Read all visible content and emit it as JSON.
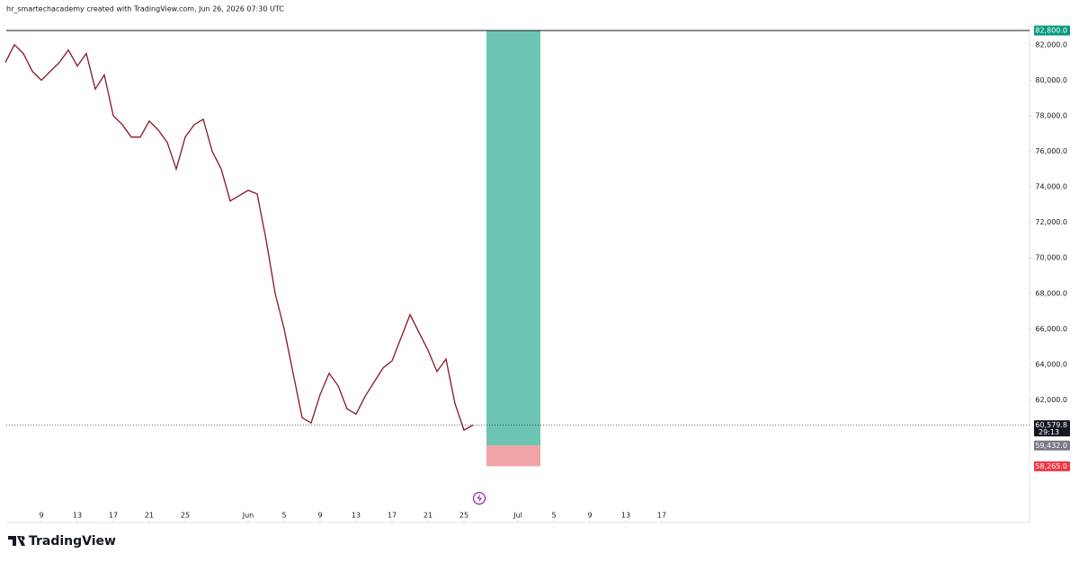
{
  "chart_data": {
    "type": "line",
    "header": "hr_smartechacademy created with TradingView.com, Jun 26, 2026 07:30 UTC",
    "brand": "TradingView",
    "color": "#8a1426",
    "x": [
      5,
      6,
      7,
      8,
      9,
      10,
      11,
      12,
      13,
      14,
      15,
      16,
      17,
      18,
      19,
      20,
      21,
      22,
      23,
      24,
      25,
      26,
      27,
      28,
      29,
      30,
      31,
      32,
      33,
      34,
      35,
      36,
      37,
      38,
      39,
      40,
      41,
      42,
      43,
      44,
      45,
      46,
      47,
      48,
      49,
      50,
      51,
      52,
      53,
      54,
      55,
      56,
      57
    ],
    "values": [
      81000,
      82000,
      81500,
      80500,
      80000,
      80500,
      81000,
      81700,
      80800,
      81500,
      79500,
      80300,
      78000,
      77500,
      76800,
      76800,
      77700,
      77200,
      76500,
      75000,
      76800,
      77500,
      77800,
      76000,
      75000,
      73200,
      73500,
      73800,
      73600,
      71000,
      68000,
      66000,
      63500,
      61000,
      60700,
      62300,
      63500,
      62800,
      61500,
      61200,
      62200,
      63000,
      63800,
      64200,
      65500,
      66800,
      65800,
      64800,
      63600,
      64300,
      61800,
      60300,
      60579.8
    ],
    "xlim": [
      5.1,
      118.9
    ],
    "ylim": [
      55100,
      83000
    ],
    "xticks": [
      {
        "value": 9,
        "label": "9"
      },
      {
        "value": 13,
        "label": "13"
      },
      {
        "value": 17,
        "label": "17"
      },
      {
        "value": 21,
        "label": "21"
      },
      {
        "value": 25,
        "label": "25"
      },
      {
        "value": 32,
        "label": "Jun"
      },
      {
        "value": 36,
        "label": "5"
      },
      {
        "value": 40,
        "label": "9"
      },
      {
        "value": 44,
        "label": "13"
      },
      {
        "value": 48,
        "label": "17"
      },
      {
        "value": 52,
        "label": "21"
      },
      {
        "value": 56,
        "label": "25"
      },
      {
        "value": 62,
        "label": "Jul"
      },
      {
        "value": 66,
        "label": "5"
      },
      {
        "value": 70,
        "label": "9"
      },
      {
        "value": 74,
        "label": "13"
      },
      {
        "value": 78,
        "label": "17"
      }
    ],
    "yticks": [
      {
        "value": 62000,
        "label": "62,000.0"
      },
      {
        "value": 64000,
        "label": "64,000.0"
      },
      {
        "value": 66000,
        "label": "66,000.0"
      },
      {
        "value": 68000,
        "label": "68,000.0"
      },
      {
        "value": 70000,
        "label": "70,000.0"
      },
      {
        "value": 72000,
        "label": "72,000.0"
      },
      {
        "value": 74000,
        "label": "74,000.0"
      },
      {
        "value": 76000,
        "label": "76,000.0"
      },
      {
        "value": 78000,
        "label": "78,000.0"
      },
      {
        "value": 80000,
        "label": "80,000.0"
      },
      {
        "value": 82000,
        "label": "82,000.0"
      }
    ],
    "position": {
      "start_x": 58.5,
      "end_x": 64.5,
      "target": 82800,
      "entry": 59432,
      "stop": 58265,
      "profit_color": "#6cc4b3",
      "loss_color": "#f2a3a8"
    },
    "price_tags": [
      {
        "value": 82800,
        "label": "82,800.0",
        "color": "#089981"
      },
      {
        "value": 60579.8,
        "label": "60,579.8",
        "color": "#131722",
        "countdown": "29:13"
      },
      {
        "value": 59432,
        "label": "59,432.0",
        "color": "#787b86"
      },
      {
        "value": 58265,
        "label": "58,265.0",
        "color": "#f23645"
      }
    ]
  }
}
